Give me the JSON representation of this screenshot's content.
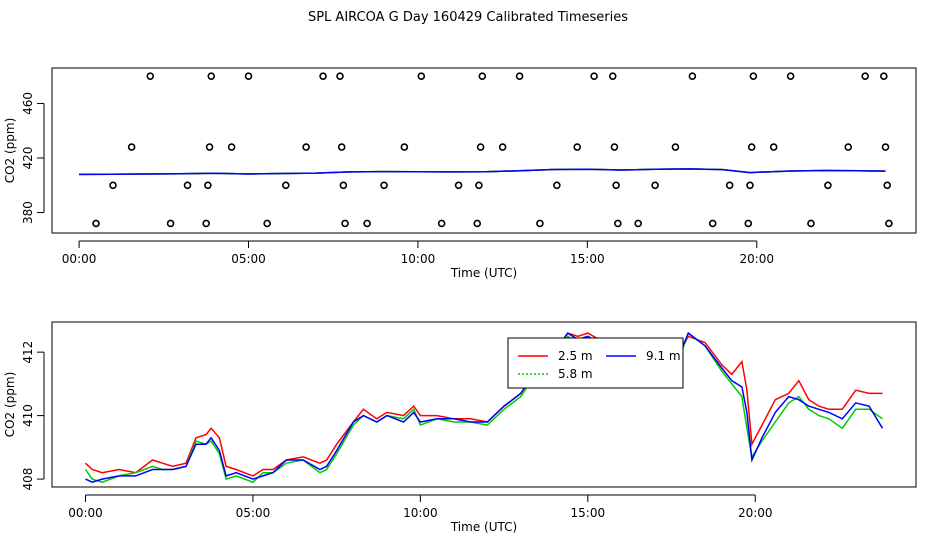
{
  "title": "SPL AIRCOA G  Day 160429  Calibrated Timeseries",
  "chart_data": [
    {
      "type": "scatter",
      "xlabel": "Time (UTC)",
      "ylabel": "CO2 (ppm)",
      "xlim": [
        -0.8,
        24.7
      ],
      "ylim": [
        365,
        486
      ],
      "x_ticks": [
        0,
        5,
        10,
        15,
        20
      ],
      "x_tick_labels": [
        "00:00",
        "05:00",
        "10:00",
        "15:00",
        "20:00"
      ],
      "y_ticks": [
        380,
        420,
        460
      ],
      "y_tick_labels": [
        "380",
        "420",
        "460"
      ],
      "grid": false,
      "points": {
        "x": [
          0.5,
          1.0,
          1.55,
          2.1,
          2.7,
          3.2,
          3.75,
          3.8,
          3.85,
          3.9,
          4.5,
          5.0,
          5.55,
          6.1,
          6.7,
          7.2,
          7.7,
          7.75,
          7.8,
          7.85,
          8.5,
          9.0,
          9.6,
          10.1,
          10.7,
          11.2,
          11.75,
          11.8,
          11.85,
          11.9,
          12.5,
          13.0,
          13.6,
          14.1,
          14.7,
          15.2,
          15.75,
          15.8,
          15.85,
          15.9,
          16.5,
          17.0,
          17.6,
          18.1,
          18.7,
          19.2,
          19.75,
          19.8,
          19.85,
          19.9,
          20.5,
          21.0,
          21.6,
          22.1,
          22.7,
          23.2,
          23.75,
          23.8,
          23.85,
          23.9
        ],
        "y": [
          372,
          400,
          428,
          480,
          372,
          400,
          372,
          400,
          428,
          480,
          428,
          480,
          372,
          400,
          428,
          480,
          480,
          428,
          400,
          372,
          372,
          400,
          428,
          480,
          372,
          400,
          372,
          400,
          428,
          480,
          428,
          480,
          372,
          400,
          428,
          480,
          480,
          428,
          400,
          372,
          372,
          400,
          428,
          480,
          372,
          400,
          372,
          400,
          428,
          480,
          428,
          480,
          372,
          400,
          428,
          480,
          480,
          428,
          400,
          372
        ]
      },
      "lines": [
        {
          "color": "#ff0000",
          "x": [
            0,
            1,
            2,
            3,
            4,
            5,
            6,
            7,
            8,
            9,
            10,
            11,
            12,
            13,
            14,
            15,
            16,
            17,
            18,
            19,
            19.8,
            20,
            21,
            22,
            23,
            23.8
          ],
          "y": [
            408.0,
            408.1,
            408.3,
            408.5,
            408.8,
            408.3,
            408.6,
            408.9,
            409.8,
            410.0,
            409.9,
            409.8,
            409.9,
            410.7,
            411.6,
            411.8,
            411.2,
            411.7,
            412.0,
            411.5,
            409.3,
            409.5,
            410.5,
            410.8,
            410.6,
            410.4
          ]
        },
        {
          "color": "#00cc00",
          "x": [
            0,
            1,
            2,
            3,
            4,
            5,
            6,
            7,
            8,
            9,
            10,
            11,
            12,
            13,
            14,
            15,
            16,
            17,
            18,
            19,
            19.8,
            20,
            21,
            22,
            23,
            23.8
          ],
          "y": [
            408.0,
            408.1,
            408.3,
            408.5,
            408.8,
            408.3,
            408.6,
            408.9,
            409.8,
            410.0,
            409.9,
            409.8,
            409.9,
            410.7,
            411.6,
            411.8,
            411.2,
            411.7,
            412.0,
            411.5,
            409.3,
            409.5,
            410.5,
            410.8,
            410.6,
            410.4
          ]
        },
        {
          "color": "#0000ff",
          "x": [
            0,
            1,
            2,
            3,
            4,
            5,
            6,
            7,
            8,
            9,
            10,
            11,
            12,
            13,
            14,
            15,
            16,
            17,
            18,
            19,
            19.8,
            20,
            21,
            22,
            23,
            23.8
          ],
          "y": [
            408.0,
            408.1,
            408.3,
            408.5,
            408.8,
            408.3,
            408.6,
            408.9,
            409.8,
            410.0,
            409.9,
            409.8,
            409.9,
            410.7,
            411.6,
            411.8,
            411.2,
            411.7,
            412.0,
            411.5,
            409.3,
            409.5,
            410.5,
            410.8,
            410.6,
            410.4
          ]
        }
      ]
    },
    {
      "type": "line",
      "xlabel": "Time (UTC)",
      "ylabel": "CO2 (ppm)",
      "xlim": [
        -1.0,
        24.8
      ],
      "ylim": [
        407.75,
        412.95
      ],
      "x_ticks": [
        0,
        5,
        10,
        15,
        20
      ],
      "x_tick_labels": [
        "00:00",
        "05:00",
        "10:00",
        "15:00",
        "20:00"
      ],
      "y_ticks": [
        408,
        410,
        412
      ],
      "y_tick_labels": [
        "408",
        "410",
        "412"
      ],
      "grid": false,
      "legend": {
        "placement": "top-center",
        "entries": [
          {
            "name": "2.5 m",
            "color": "#ff0000",
            "style": "solid"
          },
          {
            "name": "5.8 m",
            "color": "#00cc00",
            "style": "dotted"
          },
          {
            "name": "9.1 m",
            "color": "#0000ff",
            "style": "solid"
          }
        ]
      },
      "series": [
        {
          "name": "2.5 m",
          "color": "#ff0000",
          "x": [
            0,
            0.2,
            0.5,
            1.0,
            1.5,
            2.0,
            2.3,
            2.6,
            3.0,
            3.3,
            3.6,
            3.75,
            4.0,
            4.2,
            4.5,
            5.0,
            5.3,
            5.6,
            6.0,
            6.5,
            7.0,
            7.2,
            7.5,
            8.0,
            8.3,
            8.7,
            9.0,
            9.5,
            9.8,
            10.0,
            10.5,
            11.0,
            11.5,
            12.0,
            12.5,
            13.0,
            13.5,
            14.0,
            14.4,
            14.7,
            15.0,
            15.5,
            16.0,
            16.5,
            17.0,
            17.4,
            17.8,
            18.0,
            18.5,
            19.0,
            19.3,
            19.6,
            19.75,
            19.9,
            20.2,
            20.6,
            21.0,
            21.3,
            21.6,
            21.9,
            22.2,
            22.6,
            23.0,
            23.4,
            23.8
          ],
          "y": [
            408.5,
            408.3,
            408.2,
            408.3,
            408.2,
            408.6,
            408.5,
            408.4,
            408.5,
            409.3,
            409.4,
            409.6,
            409.3,
            408.4,
            408.3,
            408.1,
            408.3,
            408.3,
            408.6,
            408.7,
            408.5,
            408.6,
            409.1,
            409.8,
            410.2,
            409.9,
            410.1,
            410.0,
            410.3,
            410.0,
            410.0,
            409.9,
            409.9,
            409.8,
            410.3,
            410.7,
            411.5,
            412.0,
            412.6,
            412.5,
            412.6,
            412.3,
            411.8,
            411.4,
            411.6,
            411.9,
            412.1,
            412.5,
            412.3,
            411.6,
            411.3,
            411.7,
            410.8,
            409.1,
            409.7,
            410.5,
            410.7,
            411.1,
            410.5,
            410.3,
            410.2,
            410.2,
            410.8,
            410.7,
            410.7
          ]
        },
        {
          "name": "5.8 m",
          "color": "#00cc00",
          "x": [
            0,
            0.2,
            0.5,
            1.0,
            1.5,
            2.0,
            2.3,
            2.6,
            3.0,
            3.3,
            3.6,
            3.75,
            4.0,
            4.2,
            4.5,
            5.0,
            5.3,
            5.6,
            6.0,
            6.5,
            7.0,
            7.2,
            7.5,
            8.0,
            8.3,
            8.7,
            9.0,
            9.5,
            9.8,
            10.0,
            10.5,
            11.0,
            11.5,
            12.0,
            12.5,
            13.0,
            13.5,
            14.0,
            14.4,
            14.7,
            15.0,
            15.5,
            16.0,
            16.5,
            17.0,
            17.4,
            17.8,
            18.0,
            18.5,
            19.0,
            19.3,
            19.6,
            19.75,
            19.9,
            20.2,
            20.6,
            21.0,
            21.3,
            21.6,
            21.9,
            22.2,
            22.6,
            23.0,
            23.4,
            23.8
          ],
          "y": [
            408.3,
            408.0,
            407.9,
            408.1,
            408.2,
            408.4,
            408.3,
            408.3,
            408.4,
            409.2,
            409.1,
            409.2,
            408.8,
            408.0,
            408.1,
            407.9,
            408.2,
            408.2,
            408.5,
            408.6,
            408.2,
            408.3,
            408.8,
            409.7,
            410.0,
            409.8,
            410.0,
            409.9,
            410.2,
            409.7,
            409.9,
            409.8,
            409.8,
            409.7,
            410.2,
            410.6,
            411.4,
            411.9,
            412.5,
            412.3,
            412.4,
            412.1,
            411.7,
            411.2,
            411.3,
            411.8,
            412.0,
            412.6,
            412.2,
            411.4,
            411.0,
            410.6,
            409.6,
            408.7,
            409.2,
            409.8,
            410.4,
            410.6,
            410.2,
            410.0,
            409.9,
            409.6,
            410.2,
            410.2,
            409.9
          ]
        },
        {
          "name": "9.1 m",
          "color": "#0000ff",
          "x": [
            0,
            0.2,
            0.5,
            1.0,
            1.5,
            2.0,
            2.3,
            2.6,
            3.0,
            3.3,
            3.6,
            3.75,
            4.0,
            4.2,
            4.5,
            5.0,
            5.3,
            5.6,
            6.0,
            6.5,
            7.0,
            7.2,
            7.5,
            8.0,
            8.3,
            8.7,
            9.0,
            9.5,
            9.8,
            10.0,
            10.5,
            11.0,
            11.5,
            12.0,
            12.5,
            13.0,
            13.5,
            14.0,
            14.4,
            14.7,
            15.0,
            15.5,
            16.0,
            16.5,
            17.0,
            17.4,
            17.8,
            18.0,
            18.5,
            19.0,
            19.3,
            19.6,
            19.75,
            19.9,
            20.2,
            20.6,
            21.0,
            21.3,
            21.6,
            21.9,
            22.2,
            22.6,
            23.0,
            23.4,
            23.8
          ],
          "y": [
            408.0,
            407.9,
            408.0,
            408.1,
            408.1,
            408.3,
            408.3,
            408.3,
            408.4,
            409.1,
            409.1,
            409.3,
            408.9,
            408.1,
            408.2,
            408.0,
            408.1,
            408.2,
            408.6,
            408.6,
            408.3,
            408.4,
            408.9,
            409.8,
            410.0,
            409.8,
            410.0,
            409.8,
            410.1,
            409.8,
            409.9,
            409.9,
            409.8,
            409.8,
            410.3,
            410.7,
            411.5,
            412.0,
            412.6,
            412.4,
            412.5,
            412.2,
            411.8,
            411.3,
            411.4,
            411.9,
            412.1,
            412.6,
            412.2,
            411.5,
            411.1,
            410.9,
            410.1,
            408.6,
            409.3,
            410.1,
            410.6,
            410.5,
            410.3,
            410.2,
            410.1,
            409.9,
            410.4,
            410.3,
            409.6
          ]
        }
      ]
    }
  ]
}
